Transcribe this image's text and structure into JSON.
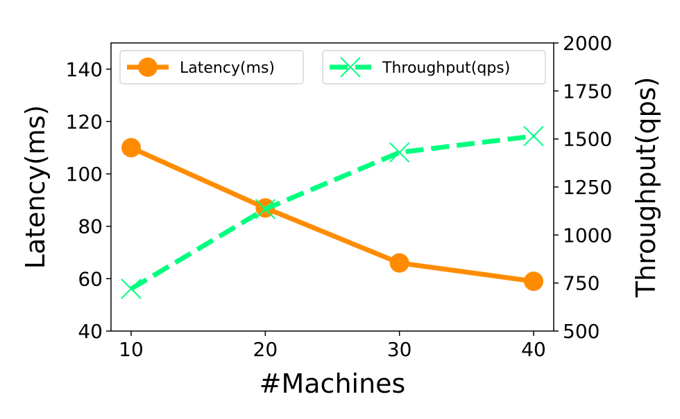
{
  "chart_data": {
    "type": "line",
    "x": [
      10,
      20,
      30,
      40
    ],
    "xlabel": "#Machines",
    "ylabel": "Latency(ms)",
    "y2label": "Throughput(qps)",
    "xlim": [
      8.5,
      41.5
    ],
    "ylim": [
      40,
      150
    ],
    "y2lim": [
      500,
      2000
    ],
    "xticks": [
      10,
      20,
      30,
      40
    ],
    "yticks": [
      40,
      60,
      80,
      100,
      120,
      140
    ],
    "y2ticks": [
      500,
      750,
      1000,
      1250,
      1500,
      1750,
      2000
    ],
    "grid": false,
    "series": [
      {
        "name": "Latency(ms)",
        "axis": "left",
        "values": [
          110,
          87,
          66,
          59
        ],
        "color": "#ff8c00",
        "style": "solid",
        "marker": "circle"
      },
      {
        "name": "Throughput(qps)",
        "axis": "right",
        "values": [
          720,
          1135,
          1430,
          1515
        ],
        "color": "#00ff7f",
        "style": "dashed",
        "marker": "x"
      }
    ],
    "legend": [
      "upper-left",
      "upper-right"
    ]
  }
}
